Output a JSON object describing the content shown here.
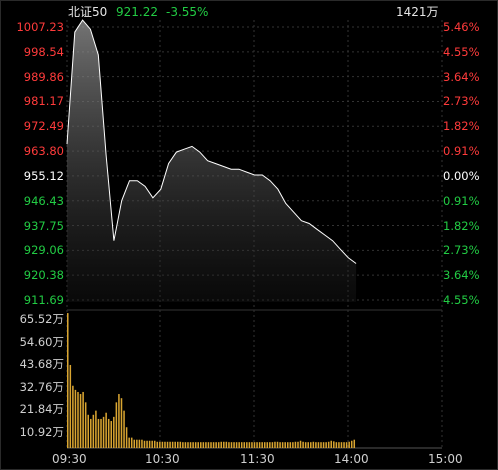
{
  "header": {
    "index_name": "北证50",
    "price": "921.22",
    "change": "-3.55%",
    "volume": "1421万"
  },
  "colors": {
    "up": "#ff3b3b",
    "down": "#22cc44",
    "neutral": "#ffffff",
    "price_line": "#ffffff",
    "volume_bar": "#d9a531",
    "grid": "#333333"
  },
  "price_axis": {
    "left_labels": [
      "1007.23",
      "998.54",
      "989.86",
      "981.17",
      "972.49",
      "963.80",
      "955.12",
      "946.43",
      "937.75",
      "929.06",
      "920.38",
      "911.69"
    ],
    "right_labels": [
      "5.46%",
      "4.55%",
      "3.64%",
      "2.73%",
      "1.82%",
      "0.91%",
      "0.00%",
      "0.91%",
      "1.82%",
      "2.73%",
      "3.64%",
      "4.55%"
    ],
    "label_kinds": [
      "up",
      "up",
      "up",
      "up",
      "up",
      "up",
      "neutral",
      "down",
      "down",
      "down",
      "down",
      "down"
    ]
  },
  "volume_axis": {
    "labels": [
      "65.52万",
      "54.60万",
      "43.68万",
      "32.76万",
      "21.84万",
      "10.92万"
    ]
  },
  "time_axis": {
    "labels": [
      "09:30",
      "10:30",
      "11:30",
      "14:00",
      "15:00"
    ]
  },
  "chart_data": {
    "type": "line",
    "title": "北证50",
    "price_series": {
      "times": [
        "09:30",
        "09:35",
        "09:40",
        "09:45",
        "09:50",
        "09:55",
        "10:00",
        "10:05",
        "10:10",
        "10:15",
        "10:20",
        "10:25",
        "10:30",
        "10:35",
        "10:40",
        "10:45",
        "10:50",
        "10:55",
        "11:00",
        "11:05",
        "11:10",
        "11:15",
        "11:20",
        "11:25",
        "11:30",
        "13:05",
        "13:10",
        "13:15",
        "13:20",
        "13:25",
        "13:30",
        "13:35",
        "13:40",
        "13:45",
        "13:50",
        "13:55",
        "14:00",
        "14:05"
      ],
      "values": [
        963.8,
        1003,
        1007.2,
        1004,
        995,
        960,
        930,
        944,
        951,
        951,
        949,
        945,
        948,
        957,
        961,
        962,
        963,
        961,
        958,
        957,
        956,
        955,
        955,
        954,
        953,
        953,
        951,
        948,
        943,
        940,
        937,
        936,
        934,
        932,
        930,
        927,
        924,
        922
      ]
    },
    "volume_series": {
      "unit": "万",
      "values": [
        65,
        40,
        30,
        28,
        27,
        26,
        27,
        22,
        16,
        14,
        16,
        18,
        14,
        14,
        15,
        17,
        14,
        13,
        15,
        22,
        26,
        24,
        18,
        10,
        5,
        5,
        4,
        4,
        4,
        4,
        3.5,
        3.5,
        3.5,
        3.5,
        3.5,
        3,
        3,
        3,
        3,
        3,
        3,
        3,
        3,
        3,
        3,
        2.8,
        2.8,
        2.8,
        2.8,
        2.8,
        2.8,
        2.8,
        2.8,
        2.8,
        2.8,
        2.8,
        2.8,
        2.8,
        2.8,
        2.8,
        3,
        3,
        3,
        2.8,
        2.8,
        2.8,
        2.8,
        2.8,
        2.8,
        2.8,
        2.8,
        2.8,
        2.8,
        2.8,
        2.8,
        2.8,
        2.8,
        2.8,
        2.8,
        2.8,
        2.8,
        3,
        3,
        2.8,
        2.8,
        2.8,
        2.8,
        2.8,
        2.8,
        3,
        3,
        3.5,
        3,
        2.8,
        2.8,
        2.8,
        3,
        2.8,
        2.8,
        2.8,
        2.8,
        2.8,
        3,
        3.5,
        3.2,
        2.8,
        2.8,
        2.8,
        2.8,
        2.8,
        3,
        3.5,
        4
      ]
    },
    "ylim": [
      911.69,
      1007.23
    ],
    "volume_ylim": [
      0,
      65.52
    ],
    "grid": true
  }
}
